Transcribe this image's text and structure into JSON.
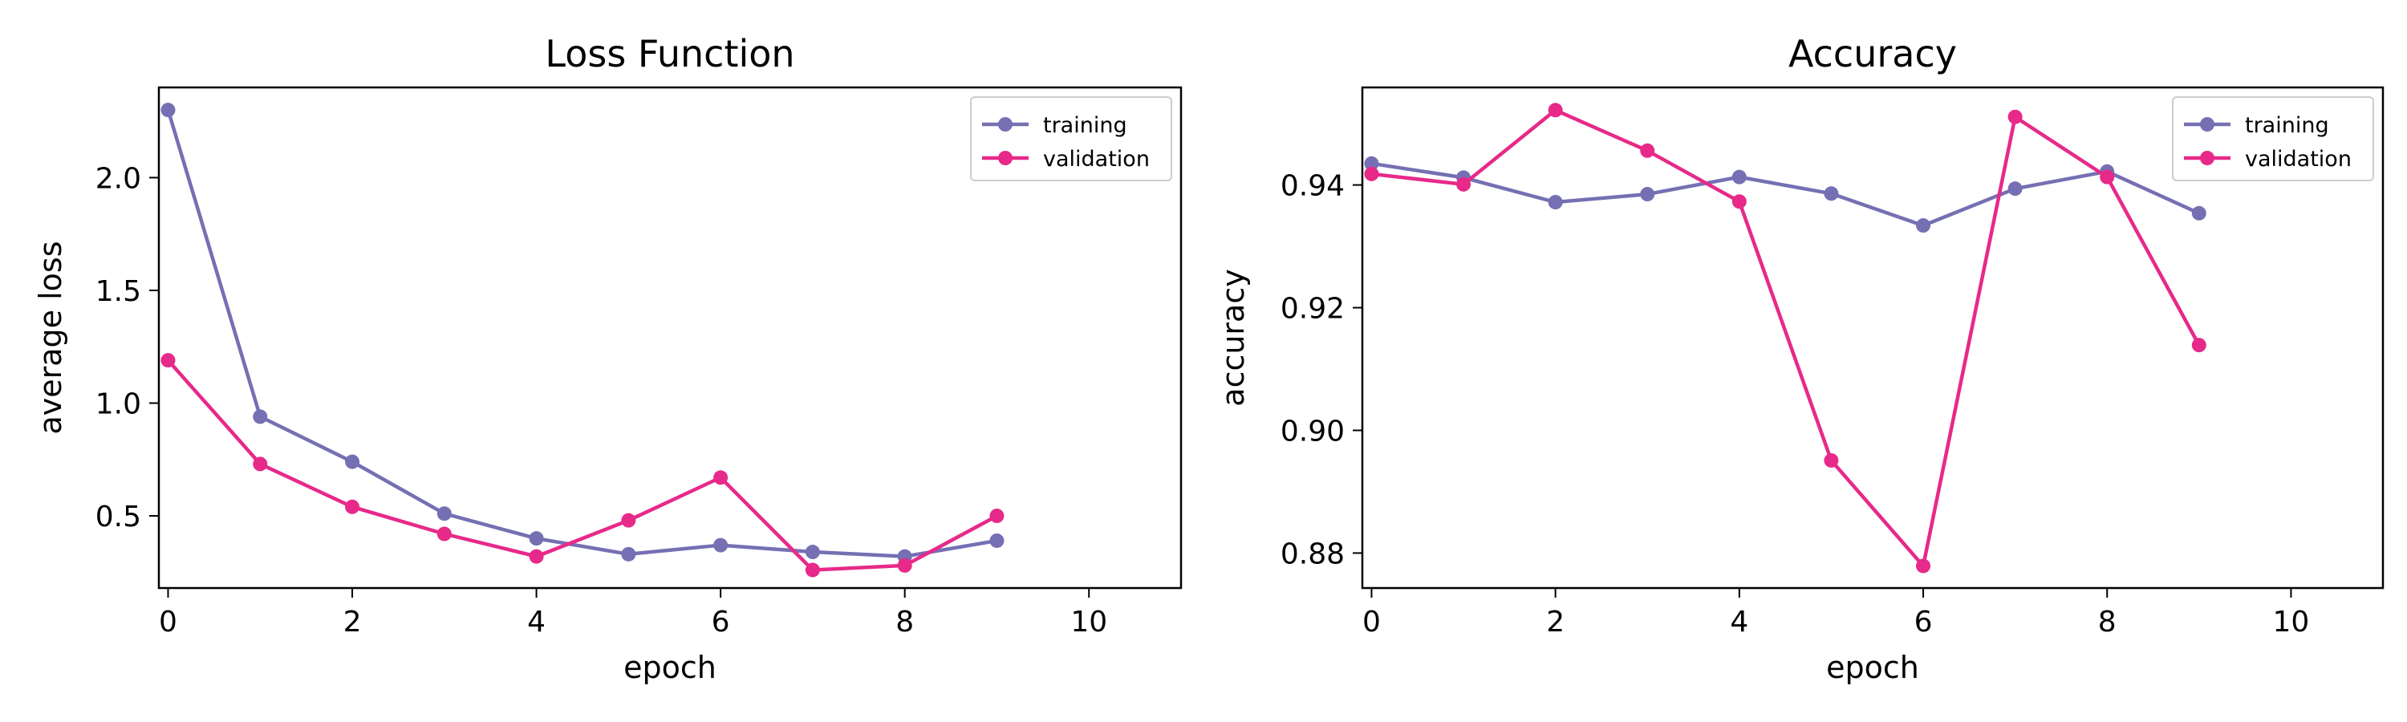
{
  "chart_data": [
    {
      "type": "line",
      "title": "Loss Function",
      "xlabel": "epoch",
      "ylabel": "average loss",
      "xlim": [
        -0.1,
        11
      ],
      "ylim": [
        0.18,
        2.4
      ],
      "xticks": [
        0,
        2,
        4,
        6,
        8,
        10
      ],
      "xtick_labels": [
        "0",
        "2",
        "4",
        "6",
        "8",
        "10"
      ],
      "yticks": [
        0.5,
        1.0,
        1.5,
        2.0
      ],
      "ytick_labels": [
        "0.5",
        "1.0",
        "1.5",
        "2.0"
      ],
      "grid": false,
      "legend_position": "top-right",
      "x": [
        0,
        1,
        2,
        3,
        4,
        5,
        6,
        7,
        8,
        9
      ],
      "series": [
        {
          "name": "training",
          "color": "#7570b3",
          "values": [
            2.3,
            0.94,
            0.74,
            0.51,
            0.4,
            0.33,
            0.37,
            0.34,
            0.32,
            0.39
          ]
        },
        {
          "name": "validation",
          "color": "#e7298a",
          "values": [
            1.19,
            0.73,
            0.54,
            0.42,
            0.32,
            0.48,
            0.67,
            0.26,
            0.28,
            0.5
          ]
        }
      ]
    },
    {
      "type": "line",
      "title": "Accuracy",
      "xlabel": "epoch",
      "ylabel": "accuracy",
      "xlim": [
        -0.1,
        11
      ],
      "ylim": [
        0.8743,
        0.9559
      ],
      "xticks": [
        0,
        2,
        4,
        6,
        8,
        10
      ],
      "xtick_labels": [
        "0",
        "2",
        "4",
        "6",
        "8",
        "10"
      ],
      "yticks": [
        0.88,
        0.9,
        0.92,
        0.94
      ],
      "ytick_labels": [
        "0.88",
        "0.90",
        "0.92",
        "0.94"
      ],
      "grid": false,
      "legend_position": "top-right",
      "x": [
        0,
        1,
        2,
        3,
        4,
        5,
        6,
        7,
        8,
        9
      ],
      "series": [
        {
          "name": "training",
          "color": "#7570b3",
          "values": [
            0.9435,
            0.9412,
            0.9372,
            0.9385,
            0.9413,
            0.9386,
            0.9334,
            0.9394,
            0.9422,
            0.9354
          ]
        },
        {
          "name": "validation",
          "color": "#e7298a",
          "values": [
            0.9418,
            0.9401,
            0.9522,
            0.9456,
            0.9373,
            0.8951,
            0.8779,
            0.9511,
            0.9413,
            0.9139
          ]
        }
      ]
    }
  ]
}
